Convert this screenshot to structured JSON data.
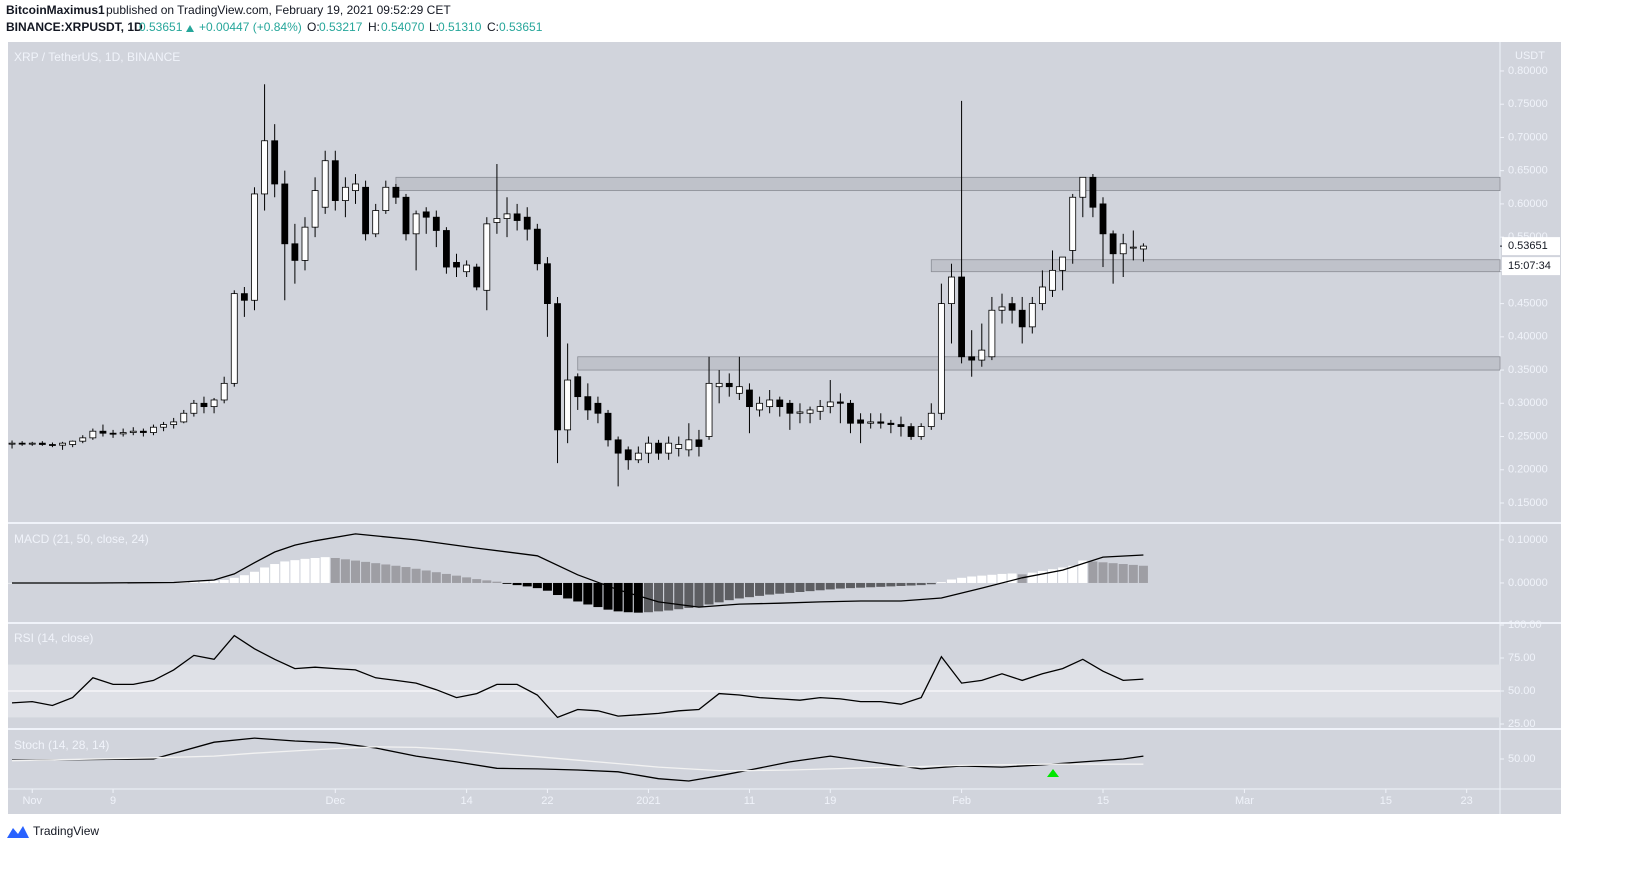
{
  "header": {
    "author": "BitcoinMaximus1",
    "published": "published on TradingView.com, February 19, 2021 09:52:29 CET",
    "symbol": "BINANCE:XRPUSDT, 1D",
    "last": "0.53651",
    "change": "+0.00447 (+0.84%)",
    "o_label": "O:",
    "o": "0.53217",
    "h_label": "H:",
    "h": "0.54070",
    "l_label": "L:",
    "l": "0.51310",
    "c_label": "C:",
    "c": "0.53651"
  },
  "footer": {
    "brand": "TradingView"
  },
  "chart_data": [
    {
      "type": "candlestick",
      "title": "XRP / TetherUS, 1D, BINANCE",
      "y_axis_label": "USDT",
      "up_color": "#ffffff",
      "down_color": "#000000",
      "wick_color": "#000000",
      "zone_color": "#a9acb4",
      "xlim": [
        -0.4,
        147.3
      ],
      "xticks": [
        {
          "value": 2,
          "label": "Nov"
        },
        {
          "value": 10,
          "label": "9"
        },
        {
          "value": 32,
          "label": "Dec"
        },
        {
          "value": 45,
          "label": "14"
        },
        {
          "value": 53,
          "label": "22"
        },
        {
          "value": 63,
          "label": "2021"
        },
        {
          "value": 73,
          "label": "11"
        },
        {
          "value": 81,
          "label": "19"
        },
        {
          "value": 94,
          "label": "Feb"
        },
        {
          "value": 108,
          "label": "15"
        },
        {
          "value": 122,
          "label": "Mar"
        },
        {
          "value": 136,
          "label": "15"
        },
        {
          "value": 144,
          "label": "23"
        }
      ],
      "ylim": [
        0.1214,
        0.8436
      ],
      "yticks": [
        {
          "value": 0.15,
          "label": "0.15000"
        },
        {
          "value": 0.2,
          "label": "0.20000"
        },
        {
          "value": 0.25,
          "label": "0.25000"
        },
        {
          "value": 0.3,
          "label": "0.30000"
        },
        {
          "value": 0.35,
          "label": "0.35000"
        },
        {
          "value": 0.4,
          "label": "0.40000"
        },
        {
          "value": 0.45,
          "label": "0.45000"
        },
        {
          "value": 0.5,
          "label": "0.50000"
        },
        {
          "value": 0.55,
          "label": "0.55000"
        },
        {
          "value": 0.6,
          "label": "0.60000"
        },
        {
          "value": 0.65,
          "label": "0.65000"
        },
        {
          "value": 0.7,
          "label": "0.70000"
        },
        {
          "value": 0.75,
          "label": "0.75000"
        },
        {
          "value": 0.8,
          "label": "0.80000"
        }
      ],
      "last_price": {
        "value": 0.53651,
        "label": "0.53651"
      },
      "countdown": "15:07:34",
      "zones": [
        {
          "low": 0.62,
          "high": 0.64,
          "start": 38
        },
        {
          "low": 0.498,
          "high": 0.516,
          "start": 91
        },
        {
          "low": 0.35,
          "high": 0.37,
          "start": 56
        }
      ],
      "open": [
        0.24,
        0.24,
        0.239,
        0.24,
        0.238,
        0.237,
        0.238,
        0.243,
        0.248,
        0.258,
        0.255,
        0.254,
        0.256,
        0.258,
        0.256,
        0.264,
        0.268,
        0.272,
        0.285,
        0.3,
        0.295,
        0.305,
        0.33,
        0.465,
        0.455,
        0.615,
        0.695,
        0.63,
        0.54,
        0.515,
        0.565,
        0.595,
        0.665,
        0.605,
        0.62,
        0.625,
        0.555,
        0.59,
        0.625,
        0.61,
        0.555,
        0.588,
        0.58,
        0.56,
        0.512,
        0.498,
        0.505,
        0.47,
        0.572,
        0.578,
        0.585,
        0.58,
        0.562,
        0.51,
        0.45,
        0.26,
        0.34,
        0.31,
        0.3,
        0.285,
        0.245,
        0.23,
        0.215,
        0.225,
        0.24,
        0.225,
        0.232,
        0.23,
        0.245,
        0.25,
        0.325,
        0.33,
        0.315,
        0.32,
        0.29,
        0.295,
        0.305,
        0.3,
        0.285,
        0.285,
        0.288,
        0.295,
        0.302,
        0.3,
        0.275,
        0.27,
        0.272,
        0.27,
        0.268,
        0.265,
        0.25,
        0.265,
        0.285,
        0.45,
        0.49,
        0.37,
        0.365,
        0.37,
        0.44,
        0.45,
        0.44,
        0.415,
        0.45,
        0.47,
        0.5,
        0.53,
        0.61,
        0.64,
        0.6,
        0.555,
        0.525,
        0.535,
        0.53217
      ],
      "high": [
        0.244,
        0.243,
        0.242,
        0.243,
        0.241,
        0.242,
        0.244,
        0.252,
        0.262,
        0.268,
        0.26,
        0.262,
        0.264,
        0.262,
        0.268,
        0.272,
        0.278,
        0.29,
        0.305,
        0.31,
        0.308,
        0.34,
        0.47,
        0.475,
        0.625,
        0.78,
        0.72,
        0.65,
        0.57,
        0.58,
        0.64,
        0.68,
        0.68,
        0.64,
        0.645,
        0.635,
        0.6,
        0.635,
        0.63,
        0.615,
        0.59,
        0.595,
        0.59,
        0.565,
        0.525,
        0.515,
        0.51,
        0.58,
        0.66,
        0.61,
        0.6,
        0.595,
        0.57,
        0.52,
        0.46,
        0.39,
        0.345,
        0.33,
        0.31,
        0.29,
        0.25,
        0.235,
        0.235,
        0.25,
        0.245,
        0.25,
        0.25,
        0.27,
        0.26,
        0.37,
        0.35,
        0.345,
        0.37,
        0.33,
        0.31,
        0.32,
        0.31,
        0.305,
        0.3,
        0.295,
        0.305,
        0.335,
        0.315,
        0.305,
        0.285,
        0.285,
        0.285,
        0.275,
        0.28,
        0.27,
        0.27,
        0.3,
        0.48,
        0.51,
        0.755,
        0.41,
        0.42,
        0.46,
        0.465,
        0.46,
        0.46,
        0.46,
        0.5,
        0.53,
        0.52,
        0.615,
        0.64,
        0.645,
        0.61,
        0.56,
        0.555,
        0.56,
        0.5407
      ],
      "low": [
        0.232,
        0.236,
        0.236,
        0.236,
        0.234,
        0.23,
        0.234,
        0.24,
        0.245,
        0.25,
        0.248,
        0.25,
        0.252,
        0.25,
        0.252,
        0.258,
        0.262,
        0.27,
        0.28,
        0.285,
        0.285,
        0.3,
        0.325,
        0.43,
        0.44,
        0.59,
        0.61,
        0.455,
        0.48,
        0.5,
        0.55,
        0.585,
        0.59,
        0.58,
        0.6,
        0.545,
        0.55,
        0.585,
        0.6,
        0.545,
        0.5,
        0.555,
        0.535,
        0.495,
        0.49,
        0.49,
        0.47,
        0.44,
        0.555,
        0.55,
        0.56,
        0.545,
        0.5,
        0.4,
        0.21,
        0.24,
        0.29,
        0.275,
        0.27,
        0.235,
        0.175,
        0.2,
        0.21,
        0.21,
        0.215,
        0.215,
        0.22,
        0.22,
        0.22,
        0.245,
        0.3,
        0.31,
        0.305,
        0.255,
        0.28,
        0.285,
        0.28,
        0.26,
        0.27,
        0.27,
        0.275,
        0.285,
        0.27,
        0.255,
        0.24,
        0.262,
        0.262,
        0.255,
        0.25,
        0.245,
        0.245,
        0.26,
        0.275,
        0.39,
        0.36,
        0.34,
        0.355,
        0.365,
        0.42,
        0.42,
        0.39,
        0.405,
        0.44,
        0.46,
        0.47,
        0.51,
        0.58,
        0.58,
        0.505,
        0.48,
        0.49,
        0.515,
        0.5131
      ],
      "close": [
        0.24,
        0.239,
        0.24,
        0.238,
        0.237,
        0.24,
        0.243,
        0.248,
        0.258,
        0.255,
        0.254,
        0.256,
        0.258,
        0.256,
        0.264,
        0.268,
        0.272,
        0.285,
        0.3,
        0.295,
        0.305,
        0.33,
        0.465,
        0.455,
        0.615,
        0.695,
        0.63,
        0.54,
        0.515,
        0.565,
        0.62,
        0.665,
        0.605,
        0.625,
        0.63,
        0.555,
        0.59,
        0.625,
        0.61,
        0.555,
        0.585,
        0.58,
        0.56,
        0.505,
        0.505,
        0.508,
        0.475,
        0.57,
        0.578,
        0.585,
        0.575,
        0.562,
        0.51,
        0.45,
        0.26,
        0.335,
        0.31,
        0.29,
        0.285,
        0.245,
        0.225,
        0.215,
        0.225,
        0.24,
        0.225,
        0.24,
        0.238,
        0.245,
        0.235,
        0.33,
        0.33,
        0.325,
        0.325,
        0.295,
        0.3,
        0.305,
        0.295,
        0.285,
        0.287,
        0.29,
        0.295,
        0.302,
        0.3,
        0.27,
        0.27,
        0.272,
        0.27,
        0.268,
        0.265,
        0.25,
        0.265,
        0.285,
        0.45,
        0.49,
        0.37,
        0.365,
        0.38,
        0.44,
        0.445,
        0.44,
        0.415,
        0.45,
        0.475,
        0.5,
        0.52,
        0.61,
        0.64,
        0.595,
        0.555,
        0.525,
        0.54,
        0.535,
        0.53651
      ]
    },
    {
      "type": "macd",
      "title": "MACD (21, 50, close, 24)",
      "ylim": [
        -0.0907,
        0.137
      ],
      "yticks": [
        {
          "value": 0,
          "label": "0.00000"
        },
        {
          "value": 0.1,
          "label": "0.10000"
        }
      ],
      "histogram_colors": {
        "pos_up": "#ffffff",
        "pos_down": "#9e9ea4",
        "neg_down": "#000000",
        "neg_up": "#5d5e62"
      },
      "histogram": [
        0,
        0,
        0,
        0,
        0,
        0,
        0,
        0,
        0.001,
        0.001,
        0.001,
        0.001,
        0.001,
        0.001,
        0.001,
        0.002,
        0.002,
        0.003,
        0.003,
        0.004,
        0.005,
        0.007,
        0.012,
        0.018,
        0.026,
        0.036,
        0.044,
        0.05,
        0.053,
        0.056,
        0.058,
        0.06,
        0.058,
        0.055,
        0.052,
        0.049,
        0.046,
        0.043,
        0.04,
        0.037,
        0.033,
        0.029,
        0.025,
        0.021,
        0.017,
        0.013,
        0.009,
        0.006,
        0.003,
        -0.002,
        -0.005,
        -0.008,
        -0.012,
        -0.018,
        -0.028,
        -0.036,
        -0.043,
        -0.05,
        -0.056,
        -0.062,
        -0.066,
        -0.068,
        -0.069,
        -0.068,
        -0.066,
        -0.064,
        -0.061,
        -0.058,
        -0.055,
        -0.05,
        -0.045,
        -0.04,
        -0.036,
        -0.033,
        -0.03,
        -0.027,
        -0.025,
        -0.023,
        -0.021,
        -0.019,
        -0.017,
        -0.015,
        -0.013,
        -0.012,
        -0.011,
        -0.01,
        -0.009,
        -0.008,
        -0.007,
        -0.006,
        -0.005,
        -0.003,
        0.002,
        0.008,
        0.012,
        0.015,
        0.017,
        0.019,
        0.021,
        0.022,
        0.02,
        0.024,
        0.028,
        0.032,
        0.036,
        0.04,
        0.052,
        0.05,
        0.048,
        0.046,
        0.044,
        0.042,
        0.04
      ],
      "lines": [
        {
          "color": "#000000",
          "x": [
            0,
            8,
            16,
            20,
            22,
            24,
            26,
            28,
            30,
            34,
            40,
            46,
            52,
            56,
            60,
            64,
            68,
            72,
            76,
            80,
            84,
            88,
            92,
            96,
            100,
            104,
            108,
            112
          ],
          "values": [
            0,
            0,
            0.001,
            0.007,
            0.021,
            0.047,
            0.072,
            0.088,
            0.098,
            0.114,
            0.1,
            0.081,
            0.063,
            0.019,
            -0.016,
            -0.044,
            -0.056,
            -0.049,
            -0.047,
            -0.044,
            -0.042,
            -0.042,
            -0.035,
            -0.012,
            0.012,
            0.03,
            0.06,
            0.065
          ]
        }
      ]
    },
    {
      "type": "line",
      "title": "RSI (14, close)",
      "ylim": [
        21.97,
        100.76
      ],
      "band": [
        30,
        70
      ],
      "band_color": "#dfe1e7",
      "midline": 50,
      "yticks": [
        {
          "value": 25,
          "label": "25.00"
        },
        {
          "value": 50,
          "label": "50.00"
        },
        {
          "value": 75,
          "label": "75.00"
        },
        {
          "value": 100,
          "label": "100.00"
        }
      ],
      "lines": [
        {
          "color": "#000000",
          "x": [
            0,
            2,
            4,
            6,
            8,
            10,
            12,
            14,
            16,
            18,
            20,
            22,
            24,
            26,
            28,
            30,
            32,
            34,
            36,
            38,
            40,
            42,
            44,
            46,
            48,
            50,
            52,
            54,
            56,
            58,
            60,
            62,
            64,
            66,
            68,
            70,
            72,
            74,
            76,
            78,
            80,
            82,
            84,
            86,
            88,
            90,
            92,
            94,
            96,
            98,
            100,
            102,
            104,
            106,
            108,
            110,
            112
          ],
          "values": [
            41,
            42,
            39,
            45,
            60,
            55,
            55,
            58,
            66,
            77,
            74,
            92,
            82,
            74,
            67,
            68,
            67,
            66,
            60,
            58,
            56,
            51,
            45,
            48,
            55,
            55,
            47,
            30,
            36,
            35,
            31,
            32,
            33,
            35,
            36,
            48,
            47,
            45,
            44,
            43,
            45,
            44,
            42,
            42,
            40,
            45,
            76,
            56,
            58,
            63,
            58,
            63,
            67,
            74,
            65,
            58,
            59
          ]
        }
      ]
    },
    {
      "type": "line",
      "title": "Stoch (14, 28, 14)",
      "ylim": [
        0,
        100
      ],
      "yticks": [
        {
          "value": 50,
          "label": "50.00"
        }
      ],
      "lines": [
        {
          "color": "#000000",
          "x": [
            0,
            14,
            20,
            24,
            28,
            32,
            36,
            40,
            44,
            48,
            52,
            56,
            60,
            64,
            67,
            70,
            73,
            77,
            81,
            85,
            90,
            94,
            98,
            102,
            106,
            110,
            112
          ],
          "values": [
            48,
            50,
            79,
            86,
            81,
            78,
            69,
            55,
            45,
            34,
            33,
            31,
            28,
            16,
            12,
            21,
            31,
            45,
            55,
            45,
            33,
            38,
            36,
            40,
            45,
            50,
            55
          ]
        },
        {
          "color": "#f2f2f2",
          "x": [
            0,
            14,
            20,
            24,
            28,
            32,
            36,
            40,
            44,
            48,
            52,
            56,
            60,
            64,
            67,
            70,
            73,
            77,
            81,
            85,
            90,
            94,
            98,
            102,
            106,
            110,
            112
          ],
          "values": [
            47,
            52,
            55,
            60,
            64,
            68,
            71,
            70,
            66,
            60,
            54,
            48,
            42,
            36,
            33,
            30,
            30,
            31,
            33,
            35,
            37,
            39,
            40,
            41,
            41,
            41,
            41
          ]
        }
      ]
    }
  ]
}
